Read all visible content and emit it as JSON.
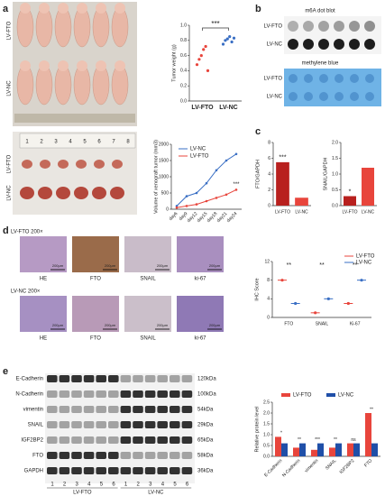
{
  "panel_labels": [
    "a",
    "b",
    "c",
    "d",
    "e"
  ],
  "photos": {
    "mouse_rows": [
      "LV-FTO",
      "LV-NC"
    ],
    "tumor_rows": [
      "LV-FTO",
      "LV-NC"
    ],
    "ruler_numbers": [
      "1",
      "2",
      "3",
      "4",
      "5",
      "6",
      "7",
      "8"
    ]
  },
  "dot_blot": {
    "title": "m6A dot blot",
    "rows": [
      "LV-FTO",
      "LV-NC"
    ],
    "stain_title": "methylene blue",
    "stain_rows": [
      "LV-FTO",
      "LV-NC"
    ]
  },
  "ihc": {
    "rows": [
      {
        "label": "LV-FTO  200×",
        "stains": [
          "HE",
          "FTO",
          "SNAIL",
          "ki-67"
        ]
      },
      {
        "label": "LV-NC  200×",
        "stains": [
          "HE",
          "FTO",
          "SNAIL",
          "ki-67"
        ]
      }
    ],
    "scale_bar": "200μm"
  },
  "western": {
    "proteins": [
      "E-Cadherin",
      "N-Cadherin",
      "vimentin",
      "SNAIL",
      "IGF2BP2",
      "FTO",
      "GAPDH"
    ],
    "sizes": [
      "120kDa",
      "100kDa",
      "54kDa",
      "29kDa",
      "65kDa",
      "58kDa",
      "36kDa"
    ],
    "lanes": [
      "1",
      "2",
      "3",
      "4",
      "5",
      "6",
      "1",
      "2",
      "3",
      "4",
      "5",
      "6"
    ],
    "groups": [
      "LV-FTO",
      "LV-NC"
    ]
  },
  "chart_data": [
    {
      "type": "strip",
      "ylabel": "Tumor weight (g)",
      "categories": [
        "LV-FTO",
        "LV-NC"
      ],
      "colors": [
        "#e8453c",
        "#3a6fc4"
      ],
      "points": [
        [
          0.48,
          0.55,
          0.6,
          0.68,
          0.72,
          0.4
        ],
        [
          0.75,
          0.8,
          0.82,
          0.85,
          0.78,
          0.83
        ]
      ],
      "ylim": [
        0,
        1.0
      ],
      "yticks": [
        {
          "value": 0,
          "label": "0.0"
        },
        0.2,
        0.4,
        0.6,
        0.8,
        {
          "value": 1.0,
          "label": "1.0"
        }
      ],
      "annotation": "***"
    },
    {
      "type": "line",
      "ylabel": "Volume of xenograft tumor (mm3)",
      "categories": [
        "day6",
        "day9",
        "day12",
        "day15",
        "day18",
        "day21",
        "day24"
      ],
      "series": [
        {
          "name": "LV-NC",
          "color": "#3a6fc4",
          "values": [
            100,
            400,
            500,
            800,
            1200,
            1500,
            1700
          ]
        },
        {
          "name": "LV-FTO",
          "color": "#e8453c",
          "values": [
            50,
            100,
            150,
            250,
            350,
            450,
            600
          ]
        }
      ],
      "ylim": [
        0,
        2000
      ],
      "yticks": [
        0,
        500,
        1000,
        1500,
        2000
      ],
      "legend": "top-left",
      "annotation": "***"
    },
    {
      "type": "bar",
      "ylabel": "FTO/GAPDH",
      "categories": [
        "LV-FTO",
        "LV-NC"
      ],
      "values": [
        5.5,
        1
      ],
      "colors": [
        "#b8201e",
        "#e8453c"
      ],
      "ylim": [
        0,
        8
      ],
      "yticks": [
        0,
        2,
        4,
        6,
        8
      ],
      "annotations": [
        "***",
        ""
      ]
    },
    {
      "type": "bar",
      "ylabel": "SNAIL/GAPDH",
      "categories": [
        "LV-FTO",
        "LV-NC"
      ],
      "values": [
        0.3,
        1.2
      ],
      "colors": [
        "#b8201e",
        "#e8453c"
      ],
      "ylim": [
        0,
        2.0
      ],
      "yticks": [
        {
          "value": 0,
          "label": "0.0"
        },
        0.5,
        {
          "value": 1,
          "label": "1.0"
        },
        1.5,
        {
          "value": 2,
          "label": "2.0"
        }
      ],
      "annotations": [
        "*",
        ""
      ]
    },
    {
      "type": "grouped_dot",
      "ylabel": "IHC Score",
      "categories": [
        "FTO",
        "SNAIL",
        "Ki-67"
      ],
      "series": [
        {
          "name": "LV-FTO",
          "color": "#e8453c",
          "values": [
            8,
            1,
            3
          ]
        },
        {
          "name": "LV-NC",
          "color": "#3a6fc4",
          "values": [
            3,
            4,
            8
          ]
        }
      ],
      "ylim": [
        0,
        12
      ],
      "yticks": [
        0,
        4,
        8,
        12
      ],
      "legend": "top-right",
      "annotations": [
        "**",
        "**",
        "**"
      ]
    },
    {
      "type": "grouped_bar",
      "ylabel": "Relative protein level",
      "categories": [
        "E-Cadherin",
        "N-Cadherin",
        "vimentin",
        "SNAIL",
        "IGF2BP2",
        "FTO"
      ],
      "series": [
        {
          "name": "LV-FTO",
          "color": "#e8453c",
          "values": [
            0.9,
            0.4,
            0.3,
            0.4,
            0.6,
            2.0
          ]
        },
        {
          "name": "LV-NC",
          "color": "#1f4fa8",
          "values": [
            0.6,
            0.6,
            0.6,
            0.6,
            0.6,
            0.6
          ]
        }
      ],
      "ylim": [
        0,
        2.5
      ],
      "yticks": [
        {
          "value": 0,
          "label": "0.0"
        },
        0.5,
        {
          "value": 1,
          "label": "1.0"
        },
        1.5,
        {
          "value": 2,
          "label": "2.0"
        },
        2.5
      ],
      "legend": "top",
      "annotations": [
        "*",
        "**",
        "***",
        "**",
        "ns",
        "**"
      ]
    }
  ]
}
